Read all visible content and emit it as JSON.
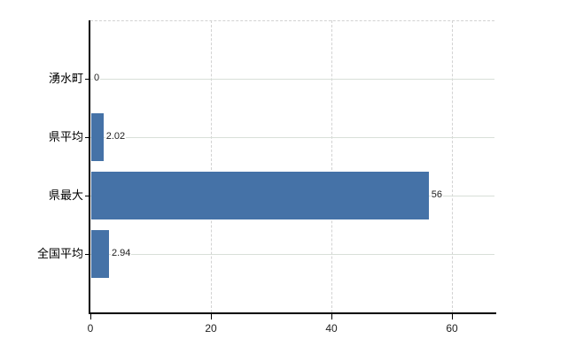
{
  "chart_data": {
    "type": "bar",
    "orientation": "horizontal",
    "title": "",
    "xlabel": "",
    "ylabel": "",
    "categories": [
      "湧水町",
      "県平均",
      "県最大",
      "全国平均"
    ],
    "values": [
      0,
      2.02,
      56,
      2.94
    ],
    "value_labels": [
      "0",
      "2.02",
      "56",
      "2.94"
    ],
    "xticks": [
      0,
      20,
      40,
      60
    ],
    "xtick_labels": [
      "0",
      "20",
      "40",
      "60"
    ],
    "xlim": [
      0,
      67.4
    ],
    "legend": "none",
    "grid": {
      "horizontal_style": "solid",
      "vertical_style": "dashed",
      "top_border_style": "dashed"
    },
    "colors": {
      "bar": "#4572a7",
      "axis": "#000000",
      "h_gridline": "#d8dfd8",
      "v_gridline": "#d2d2d2",
      "top_gridline": "#d2d2d2",
      "category_text": "#000000",
      "tick_text": "#222222",
      "value_text": "#222222",
      "background": "#ffffff"
    }
  }
}
